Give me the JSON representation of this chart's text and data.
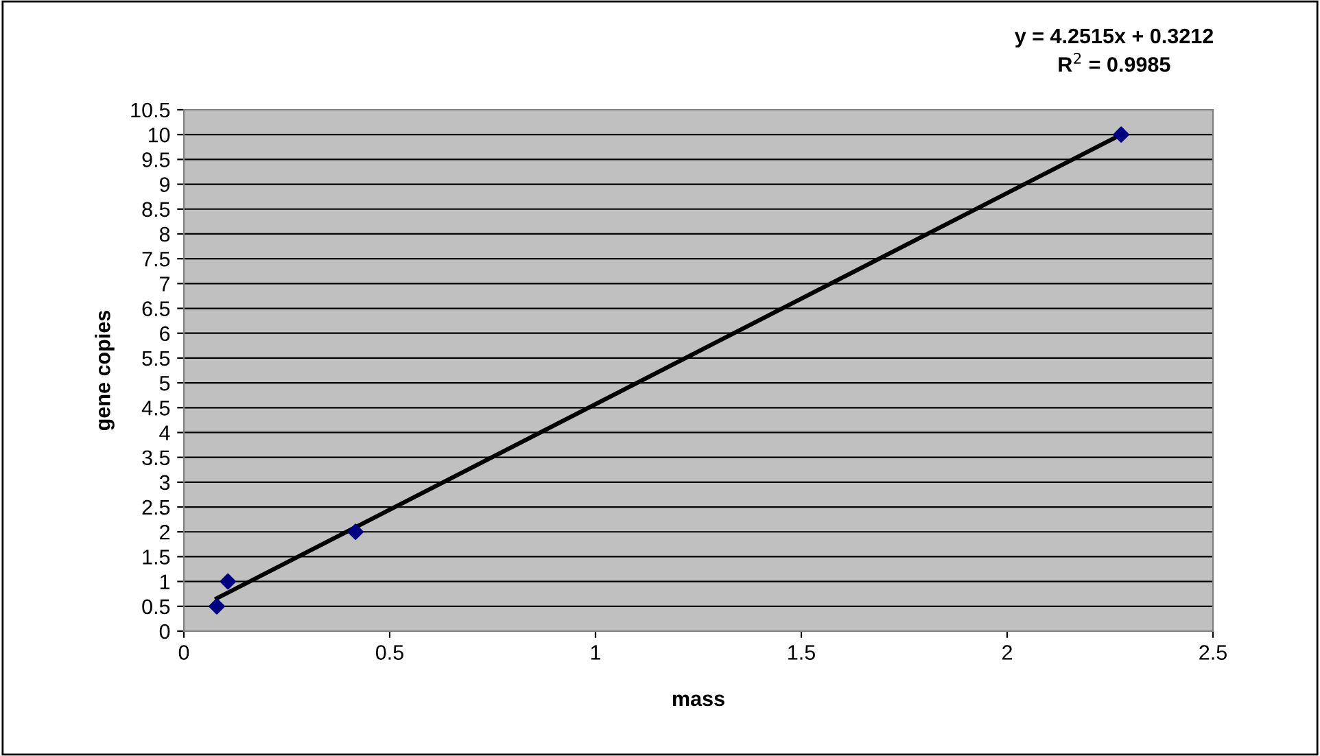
{
  "chart_data": {
    "type": "scatter",
    "xlabel": "mass",
    "ylabel": "gene copies",
    "series": [
      {
        "color": "#000080",
        "x": [
          0.08,
          0.107,
          0.417,
          2.277
        ],
        "values": [
          0.5,
          1,
          2,
          10
        ],
        "marker": "diamond"
      },
      {
        "type": "line",
        "color": "#000000",
        "x": [
          0.08,
          2.277
        ],
        "values": [
          0.66,
          10.0
        ],
        "marker": "none",
        "line_style": "solid"
      }
    ],
    "annotations": [
      "y = 4.2515x + 0.3212\nR$^{2}$ = 0.9985"
    ],
    "xlim": [
      0,
      2.5
    ],
    "xticks": [
      0,
      0.5,
      1,
      1.5,
      2,
      2.5
    ],
    "ylim": [
      0,
      10.5
    ],
    "yticks": [
      0,
      0.5,
      1,
      1.5,
      2,
      2.5,
      3,
      3.5,
      4,
      4.5,
      5,
      5.5,
      6,
      6.5,
      7,
      7.5,
      8,
      8.5,
      9,
      9.5,
      10,
      10.5
    ],
    "grid": "y",
    "legend": false
  }
}
